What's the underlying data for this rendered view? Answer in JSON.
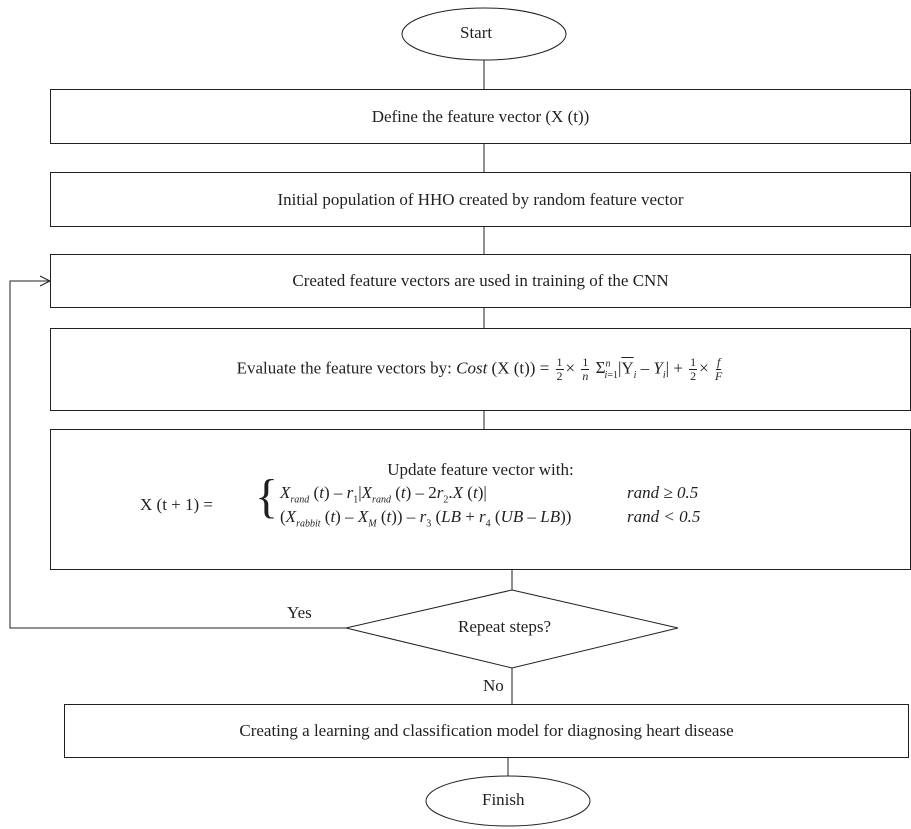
{
  "flowchart": {
    "start": "Start",
    "finish": "Finish",
    "steps": {
      "define": "Define the feature vector (X (t))",
      "init": "Initial population of HHO created by random feature vector",
      "train": "Created feature vectors are used in training of the CNN",
      "evaluate_prefix": "Evaluate the feature vectors by:",
      "update_title": "Update feature vector with:",
      "final": "Creating a learning and classification model for diagnosing heart disease"
    },
    "decision": "Repeat steps?",
    "yes_label": "Yes",
    "no_label": "No"
  },
  "formulas": {
    "cost_lhs": "Cost",
    "cost_arg": "(X (t)) =",
    "update_lhs": "X (t + 1) =",
    "case1_cond": "rand ≥ 0.5",
    "case2_cond": "rand < 0.5"
  }
}
